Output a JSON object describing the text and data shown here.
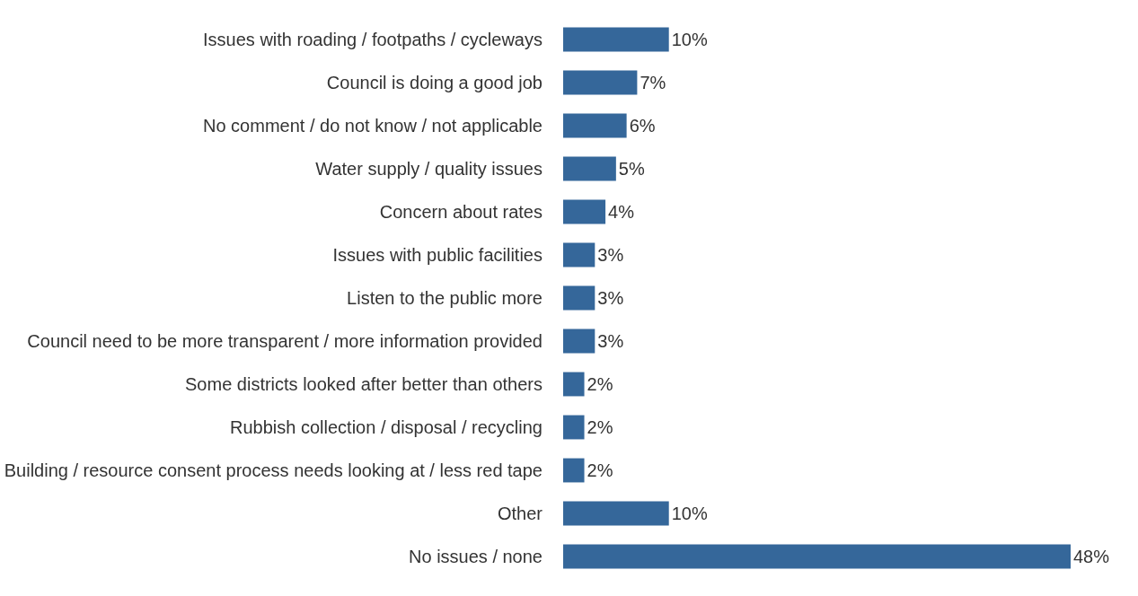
{
  "chart_data": {
    "type": "bar",
    "orientation": "horizontal",
    "categories": [
      "Issues with roading / footpaths / cycleways",
      "Council is doing a good job",
      "No comment / do not know / not applicable",
      "Water supply / quality issues",
      "Concern about rates",
      "Issues with public facilities",
      "Listen to the public more",
      "Council need to be more transparent / more information provided",
      "Some districts looked after better than others",
      "Rubbish collection / disposal / recycling",
      "Building / resource consent process needs looking at / less red tape",
      "Other",
      "No issues / none"
    ],
    "values": [
      10,
      7,
      6,
      5,
      4,
      3,
      3,
      3,
      2,
      2,
      2,
      10,
      48
    ],
    "value_labels": [
      "10%",
      "7%",
      "6%",
      "5%",
      "4%",
      "3%",
      "3%",
      "3%",
      "2%",
      "2%",
      "2%",
      "10%",
      "48%"
    ],
    "color": "#35679a"
  }
}
